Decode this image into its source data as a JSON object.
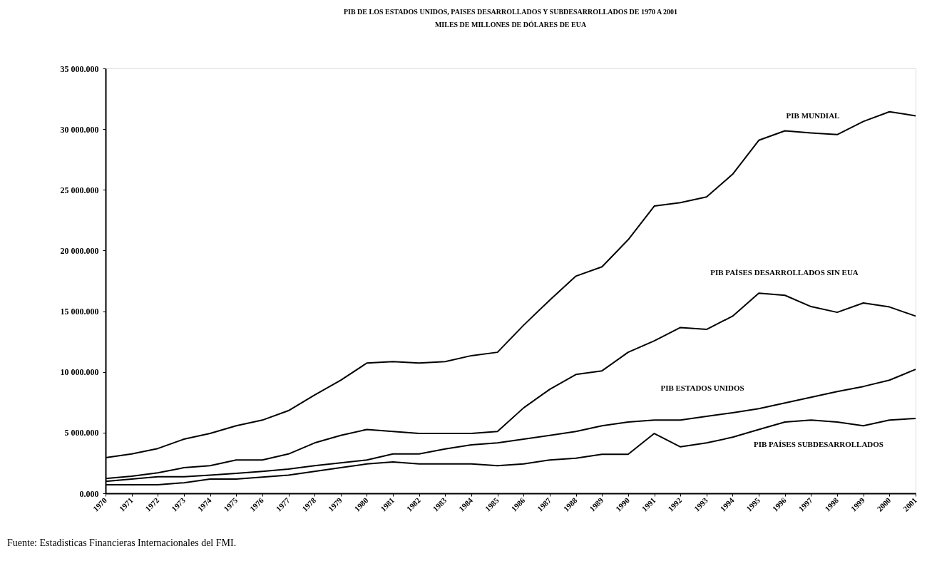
{
  "chart_data": {
    "type": "line",
    "title": "PIB DE LOS ESTADOS UNIDOS, PAISES DESARROLLADOS Y SUBDESARROLLADOS DE 1970 A 2001",
    "subtitle": "MILES DE MILLONES DE DÓLARES DE EUA",
    "categories": [
      "1970",
      "1971",
      "1972",
      "1973",
      "1974",
      "1975",
      "1976",
      "1977",
      "1978",
      "1979",
      "1980",
      "1981",
      "1982",
      "1983",
      "1984",
      "1985",
      "1986",
      "1987",
      "1988",
      "1989",
      "1990",
      "1991",
      "1992",
      "1993",
      "1994",
      "1995",
      "1996",
      "1997",
      "1998",
      "1999",
      "2000",
      "2001"
    ],
    "series": [
      {
        "name": "PIB MUNDIAL",
        "color": "#000000",
        "values": [
          2930,
          3240,
          3690,
          4460,
          4930,
          5560,
          6030,
          6810,
          8100,
          9320,
          10730,
          10850,
          10730,
          10850,
          11340,
          11620,
          13850,
          15920,
          17890,
          18660,
          20890,
          23660,
          23940,
          24410,
          26290,
          29080,
          29860,
          29690,
          29550,
          30630,
          31430,
          31100
        ]
      },
      {
        "name": "PIB PAÍSES DESARROLLADOS SIN EUA",
        "color": "#000000",
        "values": [
          1220,
          1410,
          1690,
          2110,
          2280,
          2750,
          2750,
          3240,
          4150,
          4770,
          5260,
          5090,
          4930,
          4930,
          4930,
          5090,
          7040,
          8570,
          9790,
          10090,
          11620,
          12560,
          13660,
          13500,
          14600,
          16480,
          16310,
          15380,
          14910,
          15680,
          15350,
          14600
        ]
      },
      {
        "name": "PIB ESTADOS UNIDOS",
        "color": "#000000",
        "values": [
          990,
          1170,
          1360,
          1360,
          1500,
          1640,
          1810,
          2000,
          2280,
          2510,
          2750,
          3240,
          3240,
          3660,
          3990,
          4150,
          4460,
          4770,
          5090,
          5560,
          5870,
          6030,
          6030,
          6340,
          6640,
          6970,
          7440,
          7910,
          8380,
          8800,
          9320,
          10210
        ]
      },
      {
        "name": "PIB PAÍSES SUBDESARROLLADOS",
        "color": "#000000",
        "values": [
          700,
          700,
          700,
          870,
          1170,
          1170,
          1340,
          1500,
          1810,
          2110,
          2420,
          2580,
          2420,
          2420,
          2420,
          2280,
          2420,
          2750,
          2890,
          3220,
          3220,
          4930,
          3830,
          4150,
          4620,
          5260,
          5870,
          6030,
          5870,
          5560,
          6030,
          6170
        ]
      }
    ],
    "ylim": [
      0,
      35000
    ],
    "yticks": [
      {
        "value": 0,
        "label": "0.000"
      },
      {
        "value": 5000,
        "label": "5 000.000"
      },
      {
        "value": 10000,
        "label": "10 000.000"
      },
      {
        "value": 15000,
        "label": "15 000.000"
      },
      {
        "value": 20000,
        "label": "20 000.000"
      },
      {
        "value": 25000,
        "label": "25 000.000"
      },
      {
        "value": 30000,
        "label": "30 000.000"
      },
      {
        "value": 35000,
        "label": "35 000.000"
      }
    ],
    "grid": false,
    "legend": false,
    "marker": "none",
    "line_style": "solid",
    "annotations": [
      "Fuente: Estadisticas Financieras Internacionales del FMI."
    ]
  }
}
